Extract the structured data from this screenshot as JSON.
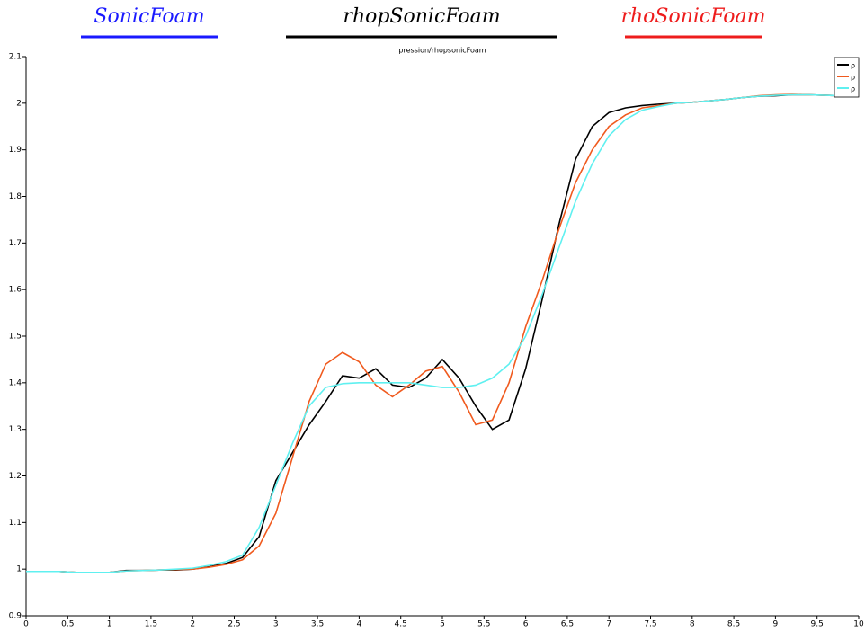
{
  "chart_data": {
    "type": "line",
    "title": "pression/rhopsonicFoam",
    "annotations": [
      {
        "label": "SonicFoam",
        "color": "#1a1aff"
      },
      {
        "label": "rhopSonicFoam",
        "color": "#000000"
      },
      {
        "label": "rhoSonicFoam",
        "color": "#ee1c1c"
      }
    ],
    "x": [
      0,
      0.2,
      0.4,
      0.6,
      0.8,
      1,
      1.2,
      1.4,
      1.6,
      1.8,
      2,
      2.2,
      2.4,
      2.6,
      2.8,
      3,
      3.2,
      3.4,
      3.6,
      3.8,
      4,
      4.2,
      4.4,
      4.6,
      4.8,
      5,
      5.2,
      5.4,
      5.6,
      5.8,
      6,
      6.2,
      6.4,
      6.6,
      6.8,
      7,
      7.2,
      7.4,
      7.6,
      7.8,
      8,
      8.2,
      8.4,
      8.6,
      8.8,
      9,
      9.2,
      9.4,
      9.6,
      9.8,
      10
    ],
    "series": [
      {
        "name": "ρ",
        "color": "#000000",
        "values": [
          0.995,
          0.995,
          0.995,
          0.993,
          0.993,
          0.993,
          0.997,
          0.997,
          0.998,
          0.998,
          1.0,
          1.005,
          1.012,
          1.025,
          1.07,
          1.19,
          1.25,
          1.31,
          1.36,
          1.415,
          1.41,
          1.43,
          1.395,
          1.39,
          1.41,
          1.45,
          1.41,
          1.35,
          1.3,
          1.32,
          1.43,
          1.58,
          1.74,
          1.88,
          1.95,
          1.98,
          1.99,
          1.995,
          1.998,
          2.0,
          2.002,
          2.005,
          2.008,
          2.012,
          2.015,
          2.016,
          2.018,
          2.018,
          2.017,
          2.016,
          2.016
        ]
      },
      {
        "name": "ρ",
        "color": "#f05a1e",
        "values": [
          0.995,
          0.995,
          0.995,
          0.993,
          0.993,
          0.993,
          0.996,
          0.997,
          0.998,
          0.999,
          1.0,
          1.004,
          1.01,
          1.02,
          1.05,
          1.12,
          1.24,
          1.36,
          1.44,
          1.465,
          1.445,
          1.395,
          1.37,
          1.395,
          1.425,
          1.435,
          1.38,
          1.31,
          1.32,
          1.4,
          1.52,
          1.62,
          1.73,
          1.83,
          1.9,
          1.95,
          1.975,
          1.99,
          1.995,
          2.0,
          2.002,
          2.005,
          2.008,
          2.012,
          2.016,
          2.018,
          2.019,
          2.018,
          2.017,
          2.016,
          2.016
        ]
      },
      {
        "name": "ρ",
        "color": "#5ff0f0",
        "values": [
          0.995,
          0.995,
          0.995,
          0.993,
          0.993,
          0.993,
          0.996,
          0.997,
          0.998,
          1.0,
          1.002,
          1.008,
          1.016,
          1.03,
          1.09,
          1.18,
          1.27,
          1.35,
          1.39,
          1.398,
          1.4,
          1.4,
          1.4,
          1.4,
          1.395,
          1.39,
          1.39,
          1.395,
          1.41,
          1.44,
          1.5,
          1.59,
          1.69,
          1.79,
          1.87,
          1.93,
          1.965,
          1.985,
          1.993,
          2.0,
          2.002,
          2.005,
          2.008,
          2.012,
          2.015,
          2.017,
          2.018,
          2.018,
          2.017,
          2.016,
          2.016
        ]
      }
    ],
    "xlim": [
      0,
      10
    ],
    "xticks": [
      0,
      0.5,
      1,
      1.5,
      2,
      2.5,
      3,
      3.5,
      4,
      4.5,
      5,
      5.5,
      6,
      6.5,
      7,
      7.5,
      8,
      8.5,
      9,
      9.5,
      10
    ],
    "ylim": [
      0.9,
      2.1
    ],
    "yticks": [
      0.9,
      1,
      1.1,
      1.2,
      1.3,
      1.4,
      1.5,
      1.6,
      1.7,
      1.8,
      1.9,
      2,
      2.1
    ],
    "grid": false,
    "legend": "upper right"
  }
}
